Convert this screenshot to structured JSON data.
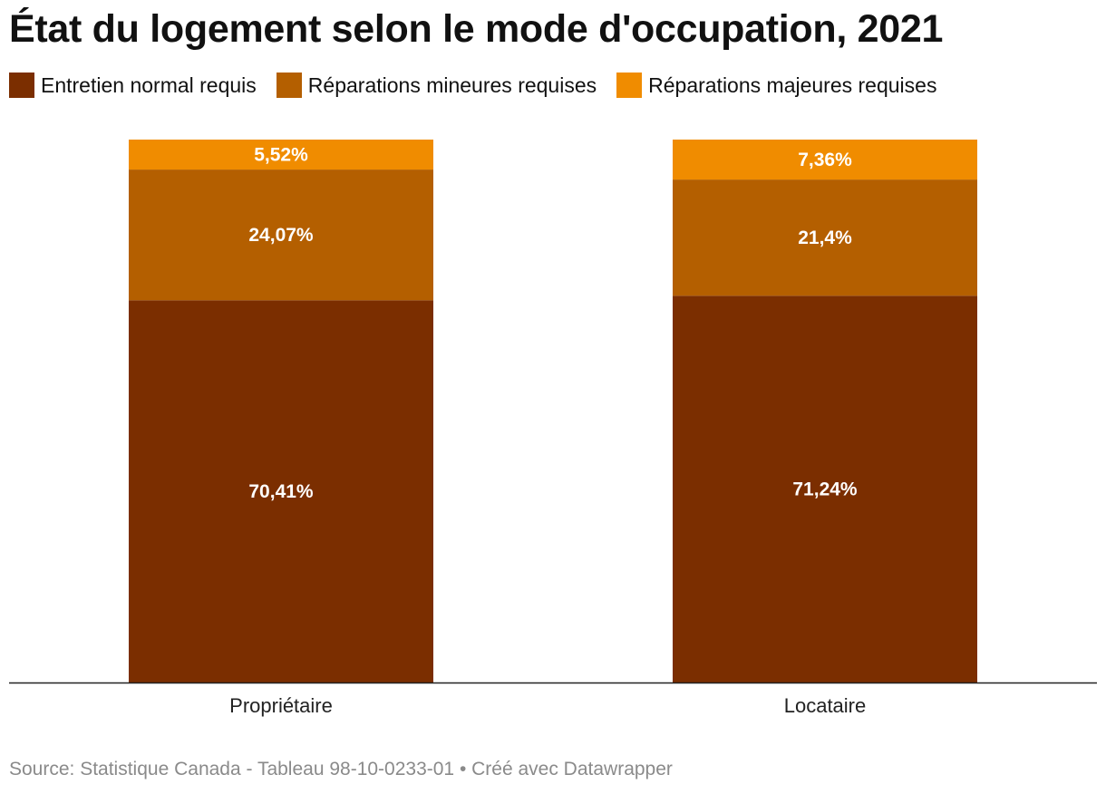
{
  "title": "État du logement selon le mode d'occupation, 2021",
  "source": "Source: Statistique Canada - Tableau 98-10-0233-01 • Créé avec Datawrapper",
  "chart_data": {
    "type": "bar",
    "stacked": true,
    "categories": [
      "Propriétaire",
      "Locataire"
    ],
    "series": [
      {
        "name": "Entretien normal requis",
        "color": "#7b2e00",
        "values": [
          70.41,
          71.24
        ],
        "labels": [
          "70,41%",
          "71,24%"
        ]
      },
      {
        "name": "Réparations mineures requises",
        "color": "#b45f00",
        "values": [
          24.07,
          21.4
        ],
        "labels": [
          "24,07%",
          "21,4%"
        ]
      },
      {
        "name": "Réparations majeures requises",
        "color": "#f08c00",
        "values": [
          5.52,
          7.36
        ],
        "labels": [
          "5,52%",
          "7,36%"
        ]
      }
    ],
    "ylim": [
      0,
      100
    ],
    "grid": false,
    "legend": "top-left"
  }
}
